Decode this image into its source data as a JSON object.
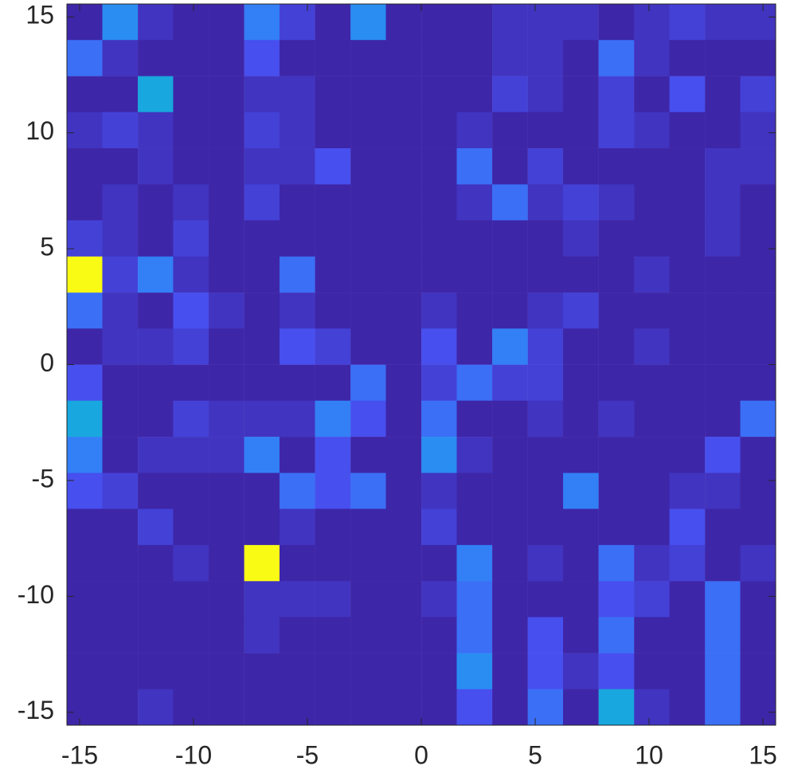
{
  "chart_data": {
    "type": "heatmap",
    "colormap": "parula",
    "x": [
      -14.78,
      -13.23,
      -11.67,
      -10.12,
      -8.56,
      -7.0,
      -5.45,
      -3.89,
      -2.33,
      -0.78,
      0.78,
      2.33,
      3.89,
      5.45,
      7.0,
      8.56,
      10.12,
      11.67,
      13.23,
      14.78
    ],
    "y": [
      14.78,
      13.23,
      11.67,
      10.12,
      8.56,
      7.0,
      5.45,
      3.89,
      2.33,
      0.78,
      -0.78,
      -2.33,
      -3.89,
      -5.45,
      -7.0,
      -8.56,
      -10.12,
      -11.67,
      -13.23,
      -14.78
    ],
    "z": [
      [
        1,
        8,
        2,
        1,
        1,
        7,
        3,
        1,
        8,
        1,
        1,
        1,
        2,
        2,
        2,
        1,
        2,
        3,
        2,
        2
      ],
      [
        6,
        2,
        1,
        1,
        1,
        4,
        1,
        1,
        1,
        1,
        1,
        1,
        2,
        2,
        1,
        6,
        2,
        1,
        1,
        1
      ],
      [
        1,
        1,
        10,
        1,
        1,
        2,
        2,
        1,
        1,
        1,
        1,
        1,
        3,
        2,
        1,
        3,
        1,
        4,
        1,
        3
      ],
      [
        2,
        3,
        2,
        1,
        1,
        3,
        2,
        1,
        1,
        1,
        1,
        2,
        1,
        1,
        1,
        3,
        2,
        1,
        1,
        2
      ],
      [
        1,
        1,
        2,
        1,
        1,
        2,
        2,
        4,
        1,
        1,
        1,
        6,
        1,
        3,
        1,
        1,
        1,
        1,
        2,
        2
      ],
      [
        1,
        2,
        1,
        2,
        1,
        3,
        1,
        1,
        1,
        1,
        1,
        2,
        6,
        2,
        3,
        2,
        1,
        1,
        2,
        1
      ],
      [
        3,
        2,
        1,
        3,
        1,
        1,
        1,
        1,
        1,
        1,
        1,
        1,
        1,
        1,
        2,
        1,
        1,
        1,
        2,
        1
      ],
      [
        27,
        3,
        7,
        2,
        1,
        1,
        6,
        1,
        1,
        1,
        1,
        1,
        1,
        1,
        1,
        1,
        2,
        1,
        1,
        1
      ],
      [
        6,
        2,
        1,
        4,
        2,
        1,
        2,
        1,
        1,
        1,
        2,
        1,
        1,
        2,
        3,
        1,
        1,
        1,
        1,
        1
      ],
      [
        1,
        2,
        2,
        3,
        1,
        1,
        4,
        3,
        1,
        1,
        4,
        1,
        7,
        3,
        1,
        1,
        2,
        1,
        1,
        1
      ],
      [
        4,
        1,
        1,
        1,
        1,
        1,
        1,
        1,
        6,
        1,
        3,
        6,
        3,
        3,
        1,
        1,
        1,
        1,
        1,
        1
      ],
      [
        10,
        1,
        1,
        3,
        2,
        2,
        2,
        7,
        4,
        1,
        6,
        1,
        1,
        2,
        1,
        2,
        1,
        1,
        1,
        6
      ],
      [
        7,
        1,
        2,
        2,
        2,
        7,
        1,
        4,
        1,
        1,
        8,
        2,
        1,
        1,
        1,
        1,
        1,
        1,
        4,
        1
      ],
      [
        4,
        3,
        1,
        1,
        1,
        1,
        6,
        4,
        6,
        1,
        2,
        1,
        1,
        1,
        7,
        1,
        1,
        2,
        2,
        1
      ],
      [
        1,
        1,
        3,
        1,
        1,
        1,
        2,
        1,
        1,
        1,
        3,
        1,
        1,
        1,
        1,
        1,
        1,
        4,
        1,
        1
      ],
      [
        1,
        1,
        1,
        2,
        1,
        27,
        1,
        1,
        1,
        1,
        1,
        7,
        1,
        2,
        1,
        6,
        2,
        3,
        1,
        2
      ],
      [
        1,
        1,
        1,
        1,
        1,
        2,
        2,
        2,
        1,
        1,
        2,
        6,
        1,
        1,
        1,
        4,
        3,
        1,
        6,
        1
      ],
      [
        1,
        1,
        1,
        1,
        1,
        2,
        1,
        1,
        1,
        1,
        1,
        6,
        1,
        4,
        1,
        6,
        1,
        1,
        6,
        1
      ],
      [
        1,
        1,
        1,
        1,
        1,
        1,
        1,
        1,
        1,
        1,
        1,
        8,
        1,
        4,
        2,
        4,
        1,
        1,
        6,
        1
      ],
      [
        1,
        1,
        2,
        1,
        1,
        1,
        1,
        1,
        1,
        1,
        1,
        4,
        1,
        6,
        1,
        10,
        2,
        1,
        6,
        1
      ]
    ],
    "xlim": [
      -15.56,
      15.56
    ],
    "ylim": [
      -15.56,
      15.56
    ],
    "xticks": [
      -15,
      -10,
      -5,
      0,
      5,
      10,
      15
    ],
    "yticks": [
      -15,
      -10,
      -5,
      0,
      5,
      10,
      15
    ]
  }
}
